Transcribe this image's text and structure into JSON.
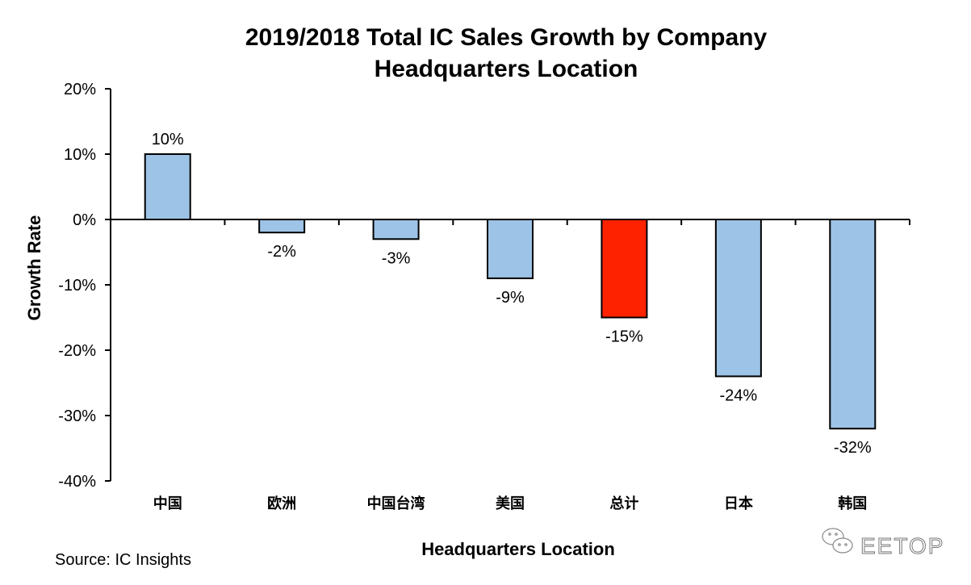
{
  "chart_data": {
    "type": "bar",
    "title": [
      "2019/2018 Total IC Sales Growth by Company",
      "Headquarters Location"
    ],
    "xlabel": "Headquarters Location",
    "ylabel": "Growth Rate",
    "ylim": [
      -40,
      20
    ],
    "yticks": [
      20,
      10,
      0,
      -10,
      -20,
      -30,
      -40
    ],
    "ytick_labels": [
      "20%",
      "10%",
      "0%",
      "-10%",
      "-20%",
      "-30%",
      "-40%"
    ],
    "categories": [
      "中国",
      "欧洲",
      "中国台湾",
      "美国",
      "总计",
      "日本",
      "韩国"
    ],
    "values": [
      10,
      -2,
      -3,
      -9,
      -15,
      -24,
      -32
    ],
    "data_labels": [
      "10%",
      "-2%",
      "-3%",
      "-9%",
      "-15%",
      "-24%",
      "-32%"
    ],
    "colors": [
      "#9dc3e6",
      "#9dc3e6",
      "#9dc3e6",
      "#9dc3e6",
      "#ff2200",
      "#9dc3e6",
      "#9dc3e6"
    ],
    "grid": false,
    "legend": "none"
  },
  "source": "Source: IC Insights",
  "watermark": "EETOP"
}
